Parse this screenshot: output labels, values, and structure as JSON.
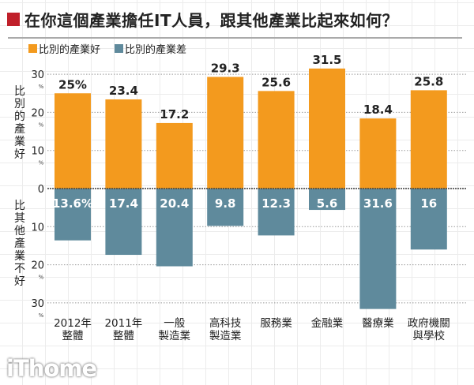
{
  "title": "在你這個產業擔任IT人員，跟其他產業比起來如何？",
  "legend": [
    {
      "label": "比別的產業好",
      "color": "#f39a1e"
    },
    {
      "label": "比別的產業差",
      "color": "#5f8a9c"
    }
  ],
  "y_labels": {
    "top": "比別的產業好",
    "bottom": "比其他產業不好"
  },
  "logo": "iThome",
  "chart_data": {
    "type": "bar",
    "title": "在你這個產業擔任IT人員，跟其他產業比起來如何？",
    "categories": [
      "2012年\n整體",
      "2011年\n整體",
      "一般\n製造業",
      "高科技\n製造業",
      "服務業",
      "金融業",
      "醫療業",
      "政府機關\n與學校"
    ],
    "series": [
      {
        "name": "比別的產業好",
        "values": [
          25,
          23.4,
          17.2,
          29.3,
          25.6,
          31.5,
          18.4,
          25.8
        ],
        "labels": [
          "25%",
          "23.4",
          "17.2",
          "29.3",
          "25.6",
          "31.5",
          "18.4",
          "25.8"
        ],
        "color": "#f39a1e"
      },
      {
        "name": "比別的產業差",
        "values": [
          13.6,
          17.4,
          20.4,
          9.8,
          12.3,
          5.6,
          31.6,
          16
        ],
        "labels": [
          "13.6%",
          "17.4",
          "20.4",
          "9.8",
          "12.3",
          "5.6",
          "31.6",
          "16"
        ],
        "color": "#5f8a9c"
      }
    ],
    "yticks_up": [
      "0",
      "10",
      "20",
      "30"
    ],
    "yticks_down": [
      "10",
      "20",
      "30"
    ],
    "tick_unit": "%",
    "ylim": [
      -30,
      30
    ],
    "grid": true
  }
}
